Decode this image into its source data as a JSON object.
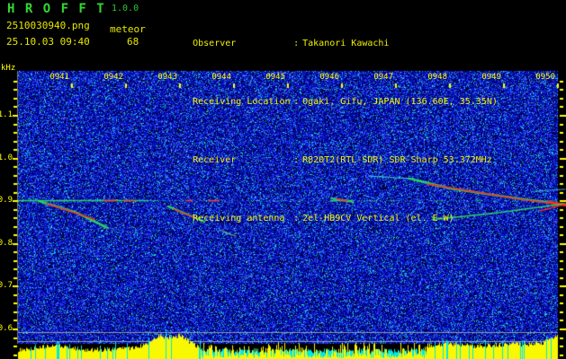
{
  "header": {
    "app_title": "H R O F F T",
    "version": "1.0.0",
    "filename": "2510030940.png",
    "mode": "meteor",
    "datetime": "25.10.03 09:40",
    "echo_count": "68",
    "info": [
      {
        "label": "Observer",
        "sep": ":",
        "value": "Takanori Kawachi"
      },
      {
        "label": "Receiving Location",
        "sep": ":",
        "value": "Ogaki, Gifu, JAPAN (136.60E, 35.35N)"
      },
      {
        "label": "Receiver",
        "sep": ":",
        "value": "R820T2(RTL-SDR) SDR-Sharp 53.372MHz"
      },
      {
        "label": "Receiving antenna",
        "sep": ":",
        "value": "2el-HB9CV Vertical (el. E-W)"
      }
    ]
  },
  "chart_data": {
    "type": "heatmap",
    "subtype": "radio-meteor-spectrogram-with-level-meter",
    "title": "",
    "xlabel": "",
    "ylabel": "kHz",
    "y_ticks": [
      "1.1",
      "1.0",
      "0.9",
      "0.8",
      "0.7",
      "0.6"
    ],
    "y_tick_values": [
      1.1,
      1.0,
      0.9,
      0.8,
      0.7,
      0.6
    ],
    "ylim_khz": [
      0.56,
      1.21
    ],
    "x_ticks": [
      "0941",
      "0942",
      "0943",
      "0944",
      "0945",
      "0946",
      "0947",
      "0948",
      "0949",
      "0950"
    ],
    "x_range": [
      "0940",
      "0950"
    ],
    "x_minutes_span": 10,
    "grid": false,
    "legend": false,
    "noise_floor_style": "blue speckle on black",
    "carrier_line_khz": 0.9,
    "carrier_green_segments_min": [
      [
        0.0,
        2.42
      ],
      [
        5.78,
        6.2
      ]
    ],
    "carrier_red_segments_min": [
      [
        1.58,
        1.83
      ],
      [
        1.95,
        2.17
      ],
      [
        3.1,
        3.23
      ],
      [
        3.53,
        3.73
      ],
      [
        5.95,
        6.12
      ]
    ],
    "threshold_lines_khz": [
      0.592,
      0.571
    ],
    "echo_traces": [
      {
        "name": "aircraft-echo-1",
        "color": "green",
        "width": 2.6,
        "points": [
          [
            0.4,
            0.898
          ],
          [
            1.083,
            0.871
          ],
          [
            1.667,
            0.835
          ]
        ]
      },
      {
        "name": "aircraft-echo-1-core",
        "color": "red",
        "width": 1.6,
        "points": [
          [
            0.533,
            0.892
          ],
          [
            1.417,
            0.856
          ]
        ]
      },
      {
        "name": "aircraft-echo-1-tail",
        "color": "dim",
        "width": 1.0,
        "points": [
          [
            1.667,
            0.835
          ],
          [
            2.467,
            0.818
          ]
        ]
      },
      {
        "name": "aircraft-echo-2",
        "color": "green",
        "width": 2.2,
        "points": [
          [
            2.783,
            0.886
          ],
          [
            3.45,
            0.85
          ]
        ]
      },
      {
        "name": "aircraft-echo-2-core",
        "color": "red",
        "width": 1.4,
        "points": [
          [
            2.883,
            0.879
          ],
          [
            3.3,
            0.858
          ]
        ]
      },
      {
        "name": "aircraft-echo-3",
        "color": "dimgreen",
        "width": 1.4,
        "points": [
          [
            3.733,
            0.831
          ],
          [
            4.033,
            0.816
          ]
        ]
      },
      {
        "name": "carrier-burst",
        "color": "green",
        "width": 2.0,
        "points": [
          [
            5.8,
            0.905
          ],
          [
            6.2,
            0.896
          ]
        ]
      },
      {
        "name": "carrier-burst-core",
        "color": "red",
        "width": 1.4,
        "points": [
          [
            5.9,
            0.903
          ],
          [
            6.1,
            0.899
          ]
        ]
      },
      {
        "name": "aircraft-echo-4-lead",
        "color": "cyan",
        "width": 1.2,
        "points": [
          [
            6.5,
            0.957
          ],
          [
            7.25,
            0.951
          ]
        ]
      },
      {
        "name": "aircraft-echo-4",
        "color": "green",
        "width": 2.6,
        "points": [
          [
            7.25,
            0.951
          ],
          [
            8.0,
            0.928
          ],
          [
            8.78,
            0.913
          ],
          [
            9.33,
            0.903
          ],
          [
            10.15,
            0.89
          ]
        ]
      },
      {
        "name": "aircraft-echo-4-core",
        "color": "red",
        "width": 1.6,
        "points": [
          [
            7.58,
            0.938
          ],
          [
            9.33,
            0.902
          ],
          [
            10.15,
            0.889
          ]
        ]
      },
      {
        "name": "aircraft-echo-4-hot",
        "color": "red",
        "width": 3.0,
        "points": [
          [
            9.83,
            0.896
          ],
          [
            10.15,
            0.889
          ]
        ]
      },
      {
        "name": "aircraft-echo-5",
        "color": "green",
        "width": 1.6,
        "points": [
          [
            7.67,
            0.855
          ],
          [
            8.83,
            0.87
          ],
          [
            10.15,
            0.892
          ]
        ]
      },
      {
        "name": "aircraft-echo-5-core",
        "color": "red",
        "width": 1.6,
        "points": [
          [
            9.67,
            0.875
          ],
          [
            10.15,
            0.891
          ]
        ]
      },
      {
        "name": "faint-echo-6",
        "color": "cyan",
        "width": 1.0,
        "points": [
          [
            9.53,
            0.921
          ],
          [
            10.15,
            0.926
          ]
        ]
      }
    ],
    "level_meter": {
      "unit": "relative signal level",
      "color": "#f8f800",
      "spike_color": "#00e8e8",
      "cyan_band_minutes": [
        3.4,
        7.55
      ],
      "envelope": [
        [
          0,
          10
        ],
        [
          0.3,
          12
        ],
        [
          0.7,
          15
        ],
        [
          0.9,
          13
        ],
        [
          1.3,
          10
        ],
        [
          1.8,
          11
        ],
        [
          2.2,
          13
        ],
        [
          2.45,
          18
        ],
        [
          2.6,
          26
        ],
        [
          2.75,
          24
        ],
        [
          3.0,
          26
        ],
        [
          3.15,
          20
        ],
        [
          3.35,
          13
        ],
        [
          3.6,
          11
        ],
        [
          3.9,
          14
        ],
        [
          4.15,
          12
        ],
        [
          4.45,
          14
        ],
        [
          4.7,
          11
        ],
        [
          5.2,
          10
        ],
        [
          6.0,
          10
        ],
        [
          6.6,
          11
        ],
        [
          7.2,
          12
        ],
        [
          7.6,
          15
        ],
        [
          7.9,
          17
        ],
        [
          8.2,
          16
        ],
        [
          8.5,
          14
        ],
        [
          8.8,
          15
        ],
        [
          9.1,
          17
        ],
        [
          9.4,
          16
        ],
        [
          9.7,
          18
        ],
        [
          9.9,
          23
        ],
        [
          10,
          27
        ]
      ]
    }
  },
  "colors": {
    "background": "#000000",
    "title_green": "#32d932",
    "text_yellow": "#e8e800",
    "info_yellow": "#f0f000",
    "axis_yellow": "#ffff00",
    "noise_blue": "#0010d8",
    "noise_cyan": "#30e8e0",
    "trace_green": "#2ee05a",
    "trace_red": "#ff2828",
    "gray_line": "#969eb4",
    "meter_yellow": "#f8f800"
  }
}
